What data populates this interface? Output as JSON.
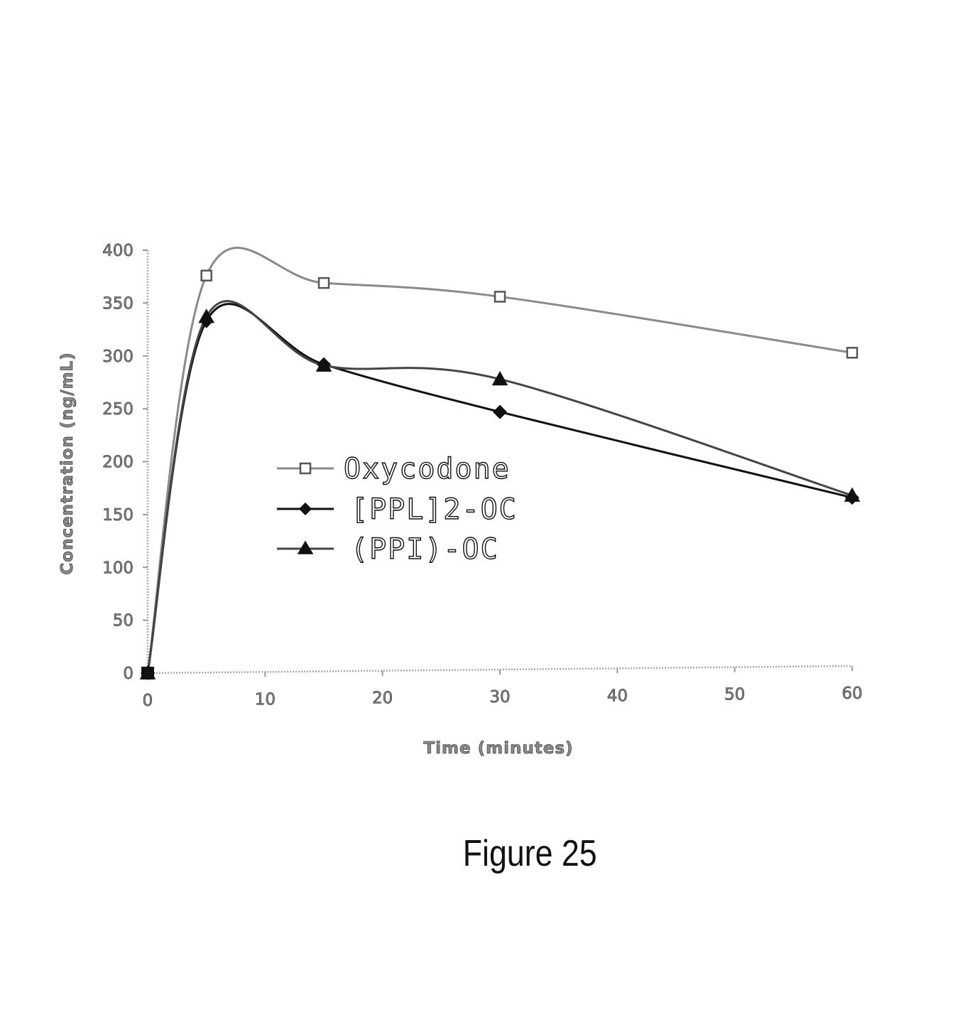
{
  "chart_data": {
    "type": "line",
    "title": "",
    "xlabel": "Time (minutes)",
    "ylabel": "Concentration (ng/mL)",
    "xlim": [
      0,
      60
    ],
    "ylim": [
      0,
      400
    ],
    "xticks": [
      "0",
      "10",
      "20",
      "30",
      "40",
      "50",
      "60"
    ],
    "yticks": [
      "0",
      "50",
      "100",
      "150",
      "200",
      "250",
      "300",
      "350",
      "400"
    ],
    "grid": false,
    "legend_position": "center",
    "series": [
      {
        "name": "Oxycodone",
        "marker": "open-square",
        "x": [
          0,
          5,
          15,
          30,
          60
        ],
        "y": [
          0,
          376,
          369,
          356,
          303
        ]
      },
      {
        "name": "[PPL]2-OC",
        "marker": "filled-diamond",
        "x": [
          0,
          5,
          15,
          30,
          60
        ],
        "y": [
          0,
          333,
          292,
          247,
          166
        ]
      },
      {
        "name": "(PPI)-OC",
        "marker": "filled-triangle",
        "x": [
          0,
          5,
          15,
          30,
          60
        ],
        "y": [
          0,
          337,
          291,
          278,
          168
        ]
      }
    ]
  },
  "legend_labels": {
    "oxycodone": "Oxycodone",
    "ppl2_oc": "[PPL]2-OC",
    "ppi_oc": "(PPI)-OC"
  },
  "caption": "Figure 25"
}
